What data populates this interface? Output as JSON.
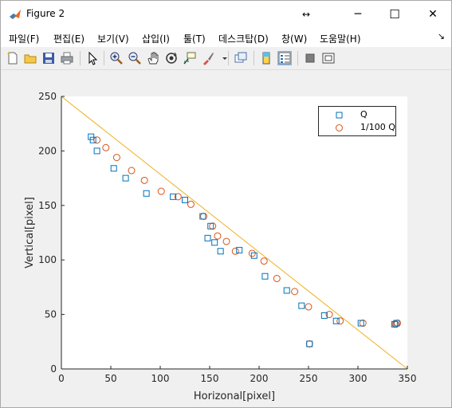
{
  "window": {
    "title": "Figure 2",
    "controls": {
      "extra": "↔",
      "minimize": "─",
      "maximize": "☐",
      "close": "✕"
    }
  },
  "menu": {
    "items": [
      "파일(F)",
      "편집(E)",
      "보기(V)",
      "삽입(I)",
      "툴(T)",
      "데스크탑(D)",
      "창(W)",
      "도움말(H)"
    ],
    "overflow": "↘"
  },
  "toolbar": {
    "icons": [
      "new-figure-icon",
      "open-file-icon",
      "save-icon",
      "print-icon",
      "edit-plot-arrow-icon",
      "zoom-in-icon",
      "zoom-out-icon",
      "pan-hand-icon",
      "rotate-3d-icon",
      "data-cursor-icon",
      "brush-icon",
      "link-plot-icon",
      "colorbar-icon",
      "legend-icon",
      "hide-plot-tools-icon",
      "show-plot-tools-icon"
    ]
  },
  "colors": {
    "q": "#0072BD",
    "q100": "#D95319",
    "line": "#EDB120",
    "axes_bg": "#ffffff",
    "figure_bg": "#f0f0f0"
  },
  "chart_data": {
    "type": "scatter",
    "xlabel": "Horizonal[pixel]",
    "ylabel": "Vertical[pixel]",
    "xlim": [
      0,
      350
    ],
    "ylim": [
      0,
      250
    ],
    "xticks": [
      0,
      50,
      100,
      150,
      200,
      250,
      300,
      350
    ],
    "yticks": [
      0,
      50,
      100,
      150,
      200,
      250
    ],
    "legend_position": "top-right",
    "series": [
      {
        "name": "Q",
        "marker": "square",
        "points": [
          [
            30,
            213
          ],
          [
            32,
            210
          ],
          [
            36,
            200
          ],
          [
            53,
            184
          ],
          [
            65,
            175
          ],
          [
            86,
            161
          ],
          [
            113,
            158
          ],
          [
            125,
            155
          ],
          [
            143,
            140
          ],
          [
            148,
            120
          ],
          [
            151,
            131
          ],
          [
            155,
            116
          ],
          [
            161,
            108
          ],
          [
            180,
            109
          ],
          [
            195,
            104
          ],
          [
            206,
            85
          ],
          [
            228,
            72
          ],
          [
            243,
            58
          ],
          [
            251,
            23
          ],
          [
            266,
            49
          ],
          [
            278,
            44
          ],
          [
            303,
            42
          ],
          [
            337,
            41
          ],
          [
            339,
            42
          ]
        ]
      },
      {
        "name": "1/100 Q",
        "marker": "circle",
        "points": [
          [
            36,
            210
          ],
          [
            45,
            203
          ],
          [
            56,
            194
          ],
          [
            71,
            182
          ],
          [
            84,
            173
          ],
          [
            101,
            163
          ],
          [
            118,
            158
          ],
          [
            131,
            151
          ],
          [
            144,
            140
          ],
          [
            153,
            131
          ],
          [
            158,
            122
          ],
          [
            167,
            117
          ],
          [
            176,
            108
          ],
          [
            193,
            106
          ],
          [
            205,
            99
          ],
          [
            218,
            83
          ],
          [
            236,
            71
          ],
          [
            250,
            57
          ],
          [
            251,
            23
          ],
          [
            271,
            50
          ],
          [
            282,
            44
          ],
          [
            305,
            42
          ],
          [
            338,
            41
          ],
          [
            340,
            42
          ]
        ]
      },
      {
        "name": "",
        "type": "line",
        "points": [
          [
            0,
            250
          ],
          [
            350,
            0
          ]
        ]
      }
    ]
  }
}
